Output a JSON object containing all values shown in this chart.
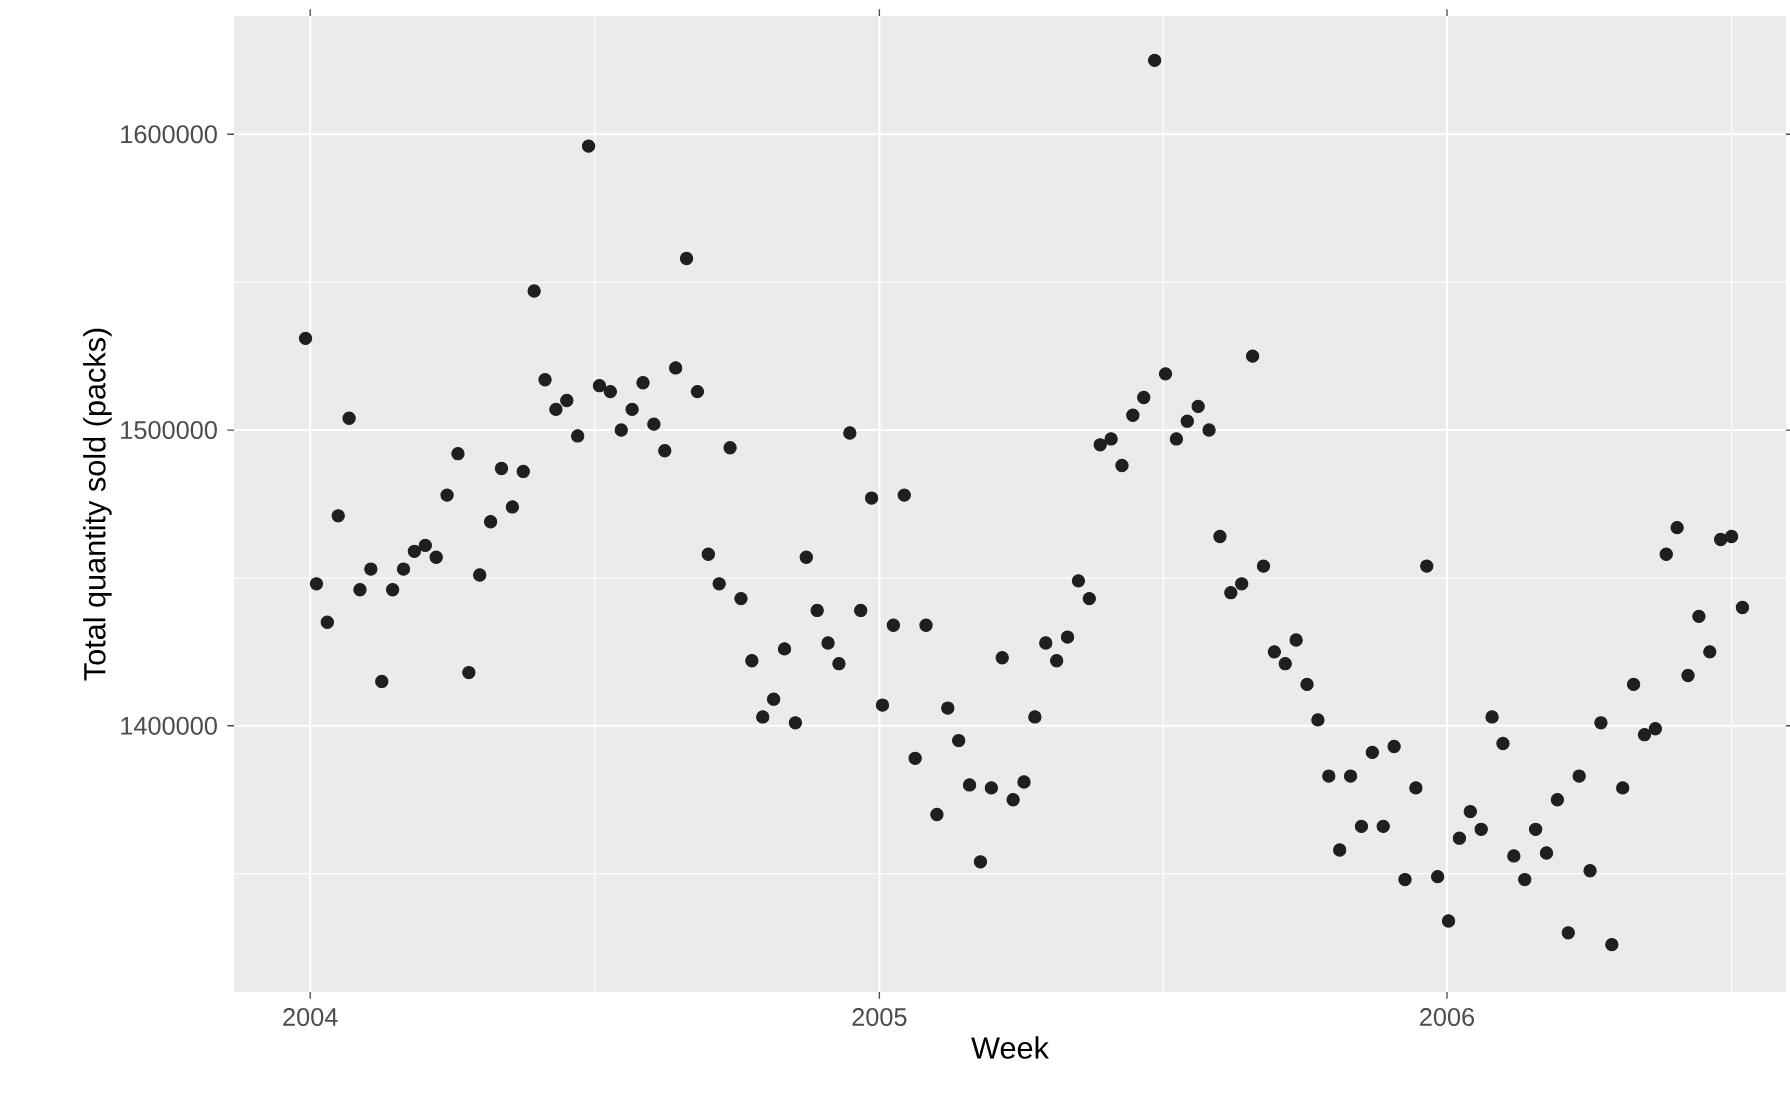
{
  "chart_data": {
    "type": "scatter",
    "xlabel": "Week",
    "ylabel": "Total quantity sold (packs)",
    "color": "#1f1f1f",
    "marker": "circle",
    "grid": true,
    "xlim": [
      "2003-11-13",
      "2006-08-07"
    ],
    "ylim": [
      1310000,
      1640000
    ],
    "xticks": [
      {
        "value": "2004-01-01",
        "label": "2004"
      },
      {
        "value": "2005-01-01",
        "label": "2005"
      },
      {
        "value": "2006-01-01",
        "label": "2006"
      }
    ],
    "yticks": [
      1400000,
      1500000,
      1600000
    ],
    "x": [
      "2003-12-29",
      "2004-01-05",
      "2004-01-12",
      "2004-01-19",
      "2004-01-26",
      "2004-02-02",
      "2004-02-09",
      "2004-02-16",
      "2004-02-23",
      "2004-03-01",
      "2004-03-08",
      "2004-03-15",
      "2004-03-22",
      "2004-03-29",
      "2004-04-05",
      "2004-04-12",
      "2004-04-19",
      "2004-04-26",
      "2004-05-03",
      "2004-05-10",
      "2004-05-17",
      "2004-05-24",
      "2004-05-31",
      "2004-06-07",
      "2004-06-14",
      "2004-06-21",
      "2004-06-28",
      "2004-07-05",
      "2004-07-12",
      "2004-07-19",
      "2004-07-26",
      "2004-08-02",
      "2004-08-09",
      "2004-08-16",
      "2004-08-23",
      "2004-08-30",
      "2004-09-06",
      "2004-09-13",
      "2004-09-20",
      "2004-09-27",
      "2004-10-04",
      "2004-10-11",
      "2004-10-18",
      "2004-10-25",
      "2004-11-01",
      "2004-11-08",
      "2004-11-15",
      "2004-11-22",
      "2004-11-29",
      "2004-12-06",
      "2004-12-13",
      "2004-12-20",
      "2004-12-27",
      "2005-01-03",
      "2005-01-10",
      "2005-01-17",
      "2005-01-24",
      "2005-01-31",
      "2005-02-07",
      "2005-02-14",
      "2005-02-21",
      "2005-02-28",
      "2005-03-07",
      "2005-03-14",
      "2005-03-21",
      "2005-03-28",
      "2005-04-04",
      "2005-04-11",
      "2005-04-18",
      "2005-04-25",
      "2005-05-02",
      "2005-05-09",
      "2005-05-16",
      "2005-05-23",
      "2005-05-30",
      "2005-06-06",
      "2005-06-13",
      "2005-06-20",
      "2005-06-27",
      "2005-07-04",
      "2005-07-11",
      "2005-07-18",
      "2005-07-25",
      "2005-08-01",
      "2005-08-08",
      "2005-08-15",
      "2005-08-22",
      "2005-08-29",
      "2005-09-05",
      "2005-09-12",
      "2005-09-19",
      "2005-09-26",
      "2005-10-03",
      "2005-10-10",
      "2005-10-17",
      "2005-10-24",
      "2005-10-31",
      "2005-11-07",
      "2005-11-14",
      "2005-11-21",
      "2005-11-28",
      "2005-12-05",
      "2005-12-12",
      "2005-12-19",
      "2005-12-26",
      "2006-01-02",
      "2006-01-09",
      "2006-01-16",
      "2006-01-23",
      "2006-01-30",
      "2006-02-06",
      "2006-02-13",
      "2006-02-20",
      "2006-02-27",
      "2006-03-06",
      "2006-03-13",
      "2006-03-20",
      "2006-03-27",
      "2006-04-03",
      "2006-04-10",
      "2006-04-17",
      "2006-04-24",
      "2006-05-01",
      "2006-05-08",
      "2006-05-15",
      "2006-05-22",
      "2006-05-29",
      "2006-06-05",
      "2006-06-12",
      "2006-06-19",
      "2006-06-26",
      "2006-07-03",
      "2006-07-10"
    ],
    "values": [
      1531000,
      1448000,
      1435000,
      1471000,
      1504000,
      1446000,
      1453000,
      1415000,
      1446000,
      1453000,
      1459000,
      1461000,
      1457000,
      1478000,
      1492000,
      1418000,
      1451000,
      1469000,
      1487000,
      1474000,
      1486000,
      1547000,
      1517000,
      1507000,
      1510000,
      1498000,
      1596000,
      1515000,
      1513000,
      1500000,
      1507000,
      1516000,
      1502000,
      1493000,
      1521000,
      1558000,
      1513000,
      1458000,
      1448000,
      1494000,
      1443000,
      1422000,
      1403000,
      1409000,
      1426000,
      1401000,
      1457000,
      1439000,
      1428000,
      1421000,
      1499000,
      1439000,
      1477000,
      1407000,
      1434000,
      1478000,
      1389000,
      1434000,
      1370000,
      1406000,
      1395000,
      1380000,
      1354000,
      1379000,
      1423000,
      1375000,
      1381000,
      1403000,
      1428000,
      1422000,
      1430000,
      1449000,
      1443000,
      1495000,
      1497000,
      1488000,
      1505000,
      1511000,
      1625000,
      1519000,
      1497000,
      1503000,
      1508000,
      1500000,
      1464000,
      1445000,
      1448000,
      1525000,
      1454000,
      1425000,
      1421000,
      1429000,
      1414000,
      1402000,
      1383000,
      1358000,
      1383000,
      1366000,
      1391000,
      1366000,
      1393000,
      1348000,
      1379000,
      1454000,
      1349000,
      1334000,
      1362000,
      1371000,
      1365000,
      1403000,
      1394000,
      1356000,
      1348000,
      1365000,
      1357000,
      1375000,
      1330000,
      1383000,
      1351000,
      1401000,
      1326000,
      1379000,
      1414000,
      1397000,
      1399000,
      1458000,
      1467000,
      1417000,
      1437000,
      1425000,
      1463000,
      1464000,
      1440000
    ]
  }
}
